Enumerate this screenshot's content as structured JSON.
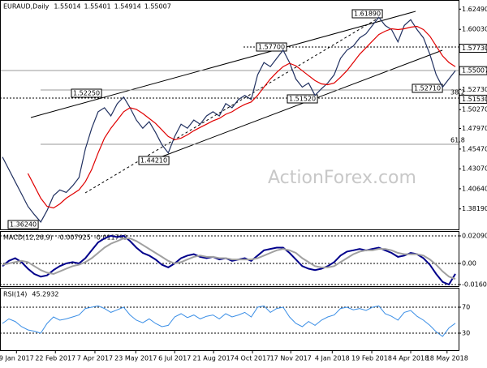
{
  "watermark": "ActionForex.com",
  "chart_data": [
    {
      "type": "line",
      "title": "EURAUD,Daily",
      "last_ohlc": [
        1.55014,
        1.55401,
        1.54914,
        1.55007
      ],
      "xlim": [
        0,
        71
      ],
      "ylim": [
        1.357,
        1.636
      ],
      "yticks": [
        {
          "value": 1.6249,
          "label": "1.62490"
        },
        {
          "value": 1.6003,
          "label": "1.60030"
        },
        {
          "value": 1.5773,
          "label": "1.57730"
        },
        1.55007,
        {
          "value": 1.5273,
          "label": "1.52730"
        },
        {
          "value": 1.5153,
          "label": "1.51530"
        },
        {
          "value": 1.5027,
          "label": "1.50270"
        },
        {
          "value": 1.4797,
          "label": "1.47970"
        },
        {
          "value": 1.4547,
          "label": "1.45470"
        },
        {
          "value": 1.4307,
          "label": "1.43070"
        },
        {
          "value": 1.4064,
          "label": "1.40640"
        },
        {
          "value": 1.3819,
          "label": "1.38190"
        }
      ],
      "annotations": [
        "1.36240",
        "1.52250",
        "1.44210",
        "1.57700",
        "1.51520",
        "1.61890",
        "1.52710",
        "38.2",
        "61.8"
      ],
      "series": [
        {
          "color": "#203060",
          "values": [
            1.445,
            1.43,
            1.415,
            1.4,
            1.385,
            1.375,
            1.366,
            1.38,
            1.398,
            1.405,
            1.402,
            1.41,
            1.42,
            1.455,
            1.48,
            1.5,
            1.505,
            1.495,
            1.51,
            1.518,
            1.505,
            1.49,
            1.48,
            1.488,
            1.475,
            1.46,
            1.45,
            1.47,
            1.485,
            1.48,
            1.49,
            1.485,
            1.495,
            1.5,
            1.495,
            1.51,
            1.505,
            1.515,
            1.52,
            1.515,
            1.545,
            1.56,
            1.555,
            1.565,
            1.575,
            1.56,
            1.54,
            1.53,
            1.535,
            1.52,
            1.528,
            1.535,
            1.545,
            1.565,
            1.575,
            1.58,
            1.59,
            1.595,
            1.605,
            1.615,
            1.605,
            1.6,
            1.585,
            1.605,
            1.612,
            1.6,
            1.59,
            1.57,
            1.545,
            1.53,
            1.54,
            1.55
          ]
        },
        {
          "color": "#e00000",
          "values": [
            null,
            null,
            null,
            null,
            1.425,
            1.41,
            1.395,
            1.385,
            1.383,
            1.388,
            1.395,
            1.4,
            1.405,
            1.415,
            1.43,
            1.45,
            1.468,
            1.48,
            1.49,
            1.5,
            1.505,
            1.503,
            1.498,
            1.492,
            1.486,
            1.478,
            1.47,
            1.466,
            1.468,
            1.472,
            1.477,
            1.481,
            1.485,
            1.489,
            1.492,
            1.497,
            1.5,
            1.505,
            1.509,
            1.512,
            1.52,
            1.53,
            1.54,
            1.548,
            1.555,
            1.559,
            1.556,
            1.55,
            1.544,
            1.538,
            1.534,
            1.533,
            1.535,
            1.542,
            1.55,
            1.56,
            1.57,
            1.578,
            1.586,
            1.594,
            1.598,
            1.601,
            1.6,
            1.601,
            1.603,
            1.604,
            1.6,
            1.592,
            1.58,
            1.568,
            1.56,
            1.555
          ]
        }
      ]
    },
    {
      "type": "line",
      "title": "MACD(12,26,9)",
      "last_values": [
        -0.007925,
        -0.011793
      ],
      "xlim": [
        0,
        71
      ],
      "ylim": [
        -0.0172,
        0.0246
      ],
      "grid": true,
      "yticks": [
        0.020904,
        {
          "value": 0,
          "label": "0.00"
        },
        -0.016023
      ],
      "series": [
        {
          "color": "#00008b",
          "values": [
            -0.002,
            0.002,
            0.004,
            0.001,
            -0.004,
            -0.008,
            -0.01,
            -0.009,
            -0.005,
            -0.002,
            0,
            0.001,
            0,
            0.004,
            0.01,
            0.016,
            0.019,
            0.021,
            0.02,
            0.021,
            0.017,
            0.012,
            0.008,
            0.006,
            0.003,
            -0.001,
            -0.003,
            0,
            0.004,
            0.006,
            0.007,
            0.005,
            0.004,
            0.005,
            0.003,
            0.004,
            0.002,
            0.003,
            0.004,
            0.002,
            0.006,
            0.01,
            0.011,
            0.012,
            0.012,
            0.008,
            0.003,
            -0.002,
            -0.004,
            -0.005,
            -0.004,
            -0.002,
            0.001,
            0.006,
            0.009,
            0.01,
            0.011,
            0.01,
            0.011,
            0.012,
            0.01,
            0.008,
            0.005,
            0.006,
            0.008,
            0.007,
            0.004,
            -0.001,
            -0.008,
            -0.014,
            -0.016,
            -0.0079
          ]
        },
        {
          "color": "#a0a0a0",
          "values": [
            -0.001,
            0,
            0.001,
            0.002,
            0.001,
            -0.002,
            -0.005,
            -0.007,
            -0.008,
            -0.006,
            -0.004,
            -0.002,
            -0.001,
            0.001,
            0.004,
            0.008,
            0.012,
            0.015,
            0.017,
            0.019,
            0.019,
            0.017,
            0.014,
            0.011,
            0.008,
            0.005,
            0.002,
            0,
            0.001,
            0.003,
            0.005,
            0.006,
            0.005,
            0.005,
            0.004,
            0.004,
            0.003,
            0.003,
            0.003,
            0.003,
            0.004,
            0.006,
            0.008,
            0.01,
            0.011,
            0.01,
            0.008,
            0.004,
            0.001,
            -0.002,
            -0.003,
            -0.003,
            -0.002,
            0.001,
            0.004,
            0.007,
            0.009,
            0.01,
            0.01,
            0.011,
            0.011,
            0.01,
            0.008,
            0.007,
            0.007,
            0.007,
            0.006,
            0.003,
            -0.001,
            -0.006,
            -0.01,
            -0.0118
          ]
        }
      ]
    },
    {
      "type": "line",
      "title": "RSI(14)",
      "last_values": [
        45.2932
      ],
      "xlim": [
        0,
        71
      ],
      "ylim": [
        0,
        100
      ],
      "grid": true,
      "yticks": [
        70,
        30
      ],
      "xticks": [
        {
          "value": 2.2,
          "label": "9 Jan 2017"
        },
        {
          "value": 8.3,
          "label": "22 Feb 2017"
        },
        {
          "value": 14.5,
          "label": "7 Apr 2017"
        },
        {
          "value": 20.9,
          "label": "23 May 2017"
        },
        {
          "value": 27,
          "label": "6 Jul 2017"
        },
        {
          "value": 33.1,
          "label": "21 Aug 2017"
        },
        {
          "value": 39.2,
          "label": "4 Oct 2017"
        },
        {
          "value": 45.2,
          "label": "17 Nov 2017"
        },
        {
          "value": 51.7,
          "label": "4 Jan 2018"
        },
        {
          "value": 57.9,
          "label": "19 Feb 2018"
        },
        {
          "value": 64,
          "label": "4 Apr 2018"
        },
        {
          "value": 69.7,
          "label": "18 May 2018"
        }
      ],
      "series": [
        {
          "color": "#3a8ee6",
          "values": [
            45,
            52,
            48,
            40,
            35,
            33,
            30,
            45,
            55,
            50,
            52,
            55,
            58,
            68,
            70,
            72,
            68,
            62,
            66,
            70,
            58,
            50,
            46,
            52,
            45,
            40,
            42,
            55,
            60,
            54,
            58,
            52,
            56,
            58,
            52,
            60,
            55,
            58,
            62,
            55,
            70,
            72,
            62,
            68,
            70,
            55,
            45,
            40,
            48,
            42,
            50,
            55,
            58,
            68,
            70,
            66,
            68,
            65,
            70,
            72,
            60,
            56,
            50,
            62,
            65,
            56,
            50,
            42,
            32,
            25,
            38,
            45.2932
          ]
        }
      ]
    }
  ]
}
